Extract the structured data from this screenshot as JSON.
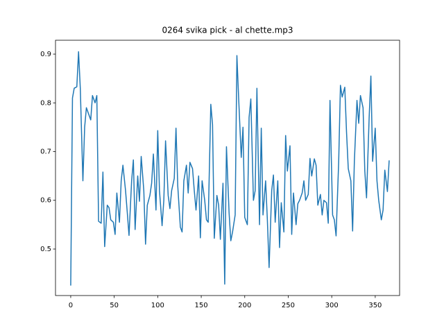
{
  "chart_data": {
    "type": "line",
    "title": "0264 svika pick - al chette.mp3",
    "color": "#1f77b4",
    "x": [
      0,
      2,
      4,
      7,
      9,
      11,
      14,
      16,
      18,
      21,
      23,
      25,
      28,
      30,
      32,
      35,
      37,
      39,
      42,
      44,
      46,
      49,
      51,
      53,
      56,
      58,
      60,
      63,
      65,
      67,
      70,
      72,
      74,
      77,
      79,
      81,
      84,
      86,
      88,
      91,
      93,
      95,
      98,
      100,
      102,
      105,
      107,
      109,
      112,
      114,
      116,
      119,
      121,
      123,
      126,
      128,
      130,
      133,
      135,
      137,
      140,
      142,
      144,
      147,
      149,
      151,
      154,
      156,
      158,
      161,
      163,
      165,
      168,
      170,
      172,
      175,
      177,
      179,
      182,
      184,
      186,
      189,
      191,
      193,
      196,
      198,
      200,
      203,
      205,
      207,
      210,
      212,
      214,
      217,
      219,
      221,
      224,
      226,
      228,
      231,
      233,
      235,
      238,
      240,
      242,
      245,
      247,
      249,
      252,
      254,
      256,
      259,
      261,
      263,
      266,
      268,
      270,
      273,
      275,
      277,
      280,
      282,
      284,
      287,
      289,
      291,
      294,
      296,
      298,
      301,
      303,
      305,
      308,
      310,
      312,
      315,
      317,
      319,
      322,
      324,
      326,
      329,
      331,
      333,
      336,
      338,
      340,
      343,
      345,
      347,
      350,
      352,
      354,
      357,
      359,
      361,
      364,
      366
    ],
    "values": [
      0.425,
      0.81,
      0.83,
      0.833,
      0.905,
      0.83,
      0.64,
      0.75,
      0.79,
      0.775,
      0.765,
      0.815,
      0.8,
      0.815,
      0.557,
      0.553,
      0.658,
      0.505,
      0.59,
      0.585,
      0.56,
      0.555,
      0.53,
      0.615,
      0.555,
      0.64,
      0.672,
      0.62,
      0.575,
      0.528,
      0.64,
      0.683,
      0.54,
      0.65,
      0.598,
      0.69,
      0.62,
      0.51,
      0.59,
      0.61,
      0.635,
      0.695,
      0.58,
      0.743,
      0.62,
      0.548,
      0.6,
      0.722,
      0.61,
      0.583,
      0.62,
      0.645,
      0.748,
      0.63,
      0.545,
      0.535,
      0.64,
      0.672,
      0.615,
      0.678,
      0.665,
      0.62,
      0.58,
      0.65,
      0.523,
      0.64,
      0.6,
      0.56,
      0.555,
      0.797,
      0.755,
      0.522,
      0.61,
      0.59,
      0.52,
      0.635,
      0.428,
      0.71,
      0.575,
      0.517,
      0.535,
      0.57,
      0.897,
      0.81,
      0.688,
      0.75,
      0.565,
      0.55,
      0.77,
      0.808,
      0.6,
      0.62,
      0.83,
      0.55,
      0.748,
      0.57,
      0.64,
      0.56,
      0.462,
      0.62,
      0.652,
      0.555,
      0.64,
      0.503,
      0.595,
      0.535,
      0.733,
      0.66,
      0.712,
      0.53,
      0.615,
      0.55,
      0.593,
      0.6,
      0.615,
      0.64,
      0.6,
      0.612,
      0.686,
      0.65,
      0.685,
      0.672,
      0.59,
      0.612,
      0.57,
      0.6,
      0.595,
      0.553,
      0.805,
      0.57,
      0.56,
      0.527,
      0.68,
      0.836,
      0.812,
      0.832,
      0.74,
      0.665,
      0.64,
      0.537,
      0.68,
      0.805,
      0.758,
      0.815,
      0.79,
      0.66,
      0.605,
      0.77,
      0.855,
      0.68,
      0.748,
      0.64,
      0.6,
      0.56,
      0.58,
      0.662,
      0.618,
      0.682
    ],
    "xlim": [
      -17.5,
      378
    ],
    "ylim": [
      0.4046,
      0.9285
    ],
    "xticks": [
      0,
      50,
      100,
      150,
      200,
      250,
      300,
      350
    ],
    "yticks": [
      0.5,
      0.6,
      0.7,
      0.8,
      0.9
    ]
  }
}
